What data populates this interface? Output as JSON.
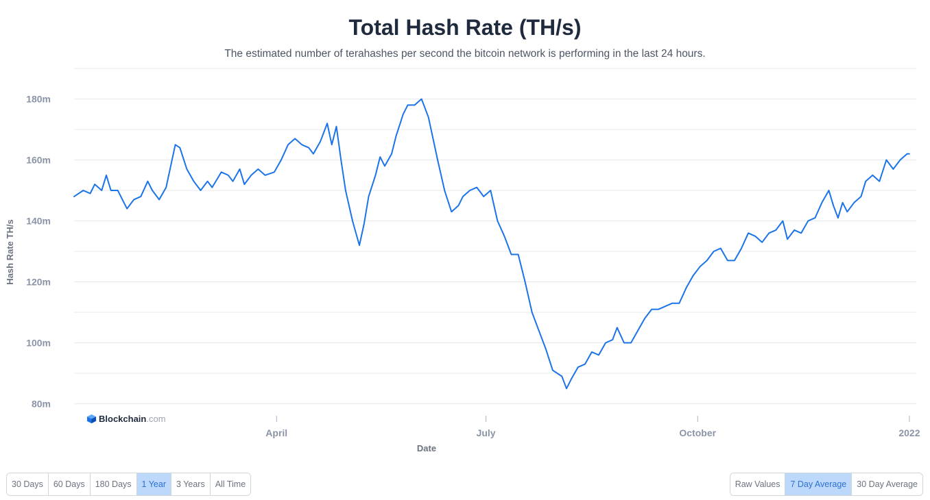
{
  "header": {
    "title": "Total Hash Rate (TH/s)",
    "subtitle": "The estimated number of terahashes per second the bitcoin network is performing in the last 24 hours."
  },
  "brand": {
    "name": "Blockchain",
    "domain": ".com",
    "icon": "blockchain-cube-icon"
  },
  "colors": {
    "line": "#1a73e8",
    "grid": "#e6e9ee",
    "axis_text": "#8a94a6",
    "active_button": "#bcd9fc"
  },
  "range_buttons": [
    {
      "label": "30 Days",
      "active": false
    },
    {
      "label": "60 Days",
      "active": false
    },
    {
      "label": "180 Days",
      "active": false
    },
    {
      "label": "1 Year",
      "active": true
    },
    {
      "label": "3 Years",
      "active": false
    },
    {
      "label": "All Time",
      "active": false
    }
  ],
  "average_buttons": [
    {
      "label": "Raw Values",
      "active": false
    },
    {
      "label": "7 Day Average",
      "active": true
    },
    {
      "label": "30 Day Average",
      "active": false
    }
  ],
  "chart_data": {
    "type": "line",
    "title": "Total Hash Rate (TH/s)",
    "xlabel": "Date",
    "ylabel": "Hash Rate TH/s",
    "y_ticks": [
      {
        "value": 80,
        "label": "80m"
      },
      {
        "value": 100,
        "label": "100m"
      },
      {
        "value": 120,
        "label": "120m"
      },
      {
        "value": 140,
        "label": "140m"
      },
      {
        "value": 160,
        "label": "160m"
      },
      {
        "value": 180,
        "label": "180m"
      }
    ],
    "ylim": [
      79,
      190
    ],
    "xlim": [
      "2021-01-03",
      "2022-01-04"
    ],
    "x_ticks": [
      {
        "date": "2021-04-01",
        "label": "April"
      },
      {
        "date": "2021-07-01",
        "label": "July"
      },
      {
        "date": "2021-10-01",
        "label": "October"
      },
      {
        "date": "2022-01-01",
        "label": "2022"
      }
    ],
    "grid": true,
    "series": [
      {
        "values": [
          [
            "2021-01-03",
            148
          ],
          [
            "2021-01-07",
            150
          ],
          [
            "2021-01-10",
            149
          ],
          [
            "2021-01-12",
            152
          ],
          [
            "2021-01-15",
            150
          ],
          [
            "2021-01-17",
            155
          ],
          [
            "2021-01-19",
            150
          ],
          [
            "2021-01-22",
            150
          ],
          [
            "2021-01-26",
            144
          ],
          [
            "2021-01-29",
            147
          ],
          [
            "2021-02-01",
            148
          ],
          [
            "2021-02-04",
            153
          ],
          [
            "2021-02-06",
            150
          ],
          [
            "2021-02-09",
            147
          ],
          [
            "2021-02-12",
            151
          ],
          [
            "2021-02-16",
            165
          ],
          [
            "2021-02-18",
            164
          ],
          [
            "2021-02-21",
            157
          ],
          [
            "2021-02-24",
            153
          ],
          [
            "2021-02-27",
            150
          ],
          [
            "2021-03-02",
            153
          ],
          [
            "2021-03-04",
            151
          ],
          [
            "2021-03-08",
            156
          ],
          [
            "2021-03-11",
            155
          ],
          [
            "2021-03-13",
            153
          ],
          [
            "2021-03-16",
            157
          ],
          [
            "2021-03-18",
            152
          ],
          [
            "2021-03-21",
            155
          ],
          [
            "2021-03-24",
            157
          ],
          [
            "2021-03-27",
            155
          ],
          [
            "2021-03-31",
            156
          ],
          [
            "2021-04-03",
            160
          ],
          [
            "2021-04-06",
            165
          ],
          [
            "2021-04-09",
            167
          ],
          [
            "2021-04-12",
            165
          ],
          [
            "2021-04-15",
            164
          ],
          [
            "2021-04-17",
            162
          ],
          [
            "2021-04-20",
            166
          ],
          [
            "2021-04-23",
            172
          ],
          [
            "2021-04-25",
            165
          ],
          [
            "2021-04-27",
            171
          ],
          [
            "2021-04-29",
            160
          ],
          [
            "2021-05-01",
            150
          ],
          [
            "2021-05-04",
            140
          ],
          [
            "2021-05-07",
            132
          ],
          [
            "2021-05-09",
            139
          ],
          [
            "2021-05-11",
            148
          ],
          [
            "2021-05-14",
            155
          ],
          [
            "2021-05-16",
            161
          ],
          [
            "2021-05-18",
            158
          ],
          [
            "2021-05-21",
            162
          ],
          [
            "2021-05-23",
            168
          ],
          [
            "2021-05-26",
            175
          ],
          [
            "2021-05-28",
            178
          ],
          [
            "2021-05-31",
            178
          ],
          [
            "2021-06-03",
            180
          ],
          [
            "2021-06-06",
            174
          ],
          [
            "2021-06-10",
            160
          ],
          [
            "2021-06-13",
            150
          ],
          [
            "2021-06-16",
            143
          ],
          [
            "2021-06-19",
            145
          ],
          [
            "2021-06-21",
            148
          ],
          [
            "2021-06-24",
            150
          ],
          [
            "2021-06-27",
            151
          ],
          [
            "2021-06-30",
            148
          ],
          [
            "2021-07-03",
            150
          ],
          [
            "2021-07-06",
            140
          ],
          [
            "2021-07-09",
            135
          ],
          [
            "2021-07-12",
            129
          ],
          [
            "2021-07-15",
            129
          ],
          [
            "2021-07-18",
            120
          ],
          [
            "2021-07-21",
            110
          ],
          [
            "2021-07-24",
            104
          ],
          [
            "2021-07-27",
            98
          ],
          [
            "2021-07-30",
            91
          ],
          [
            "2021-08-03",
            89
          ],
          [
            "2021-08-05",
            85
          ],
          [
            "2021-08-07",
            88
          ],
          [
            "2021-08-10",
            92
          ],
          [
            "2021-08-13",
            93
          ],
          [
            "2021-08-16",
            97
          ],
          [
            "2021-08-19",
            96
          ],
          [
            "2021-08-22",
            100
          ],
          [
            "2021-08-25",
            101
          ],
          [
            "2021-08-27",
            105
          ],
          [
            "2021-08-30",
            100
          ],
          [
            "2021-09-02",
            100
          ],
          [
            "2021-09-05",
            104
          ],
          [
            "2021-09-08",
            108
          ],
          [
            "2021-09-11",
            111
          ],
          [
            "2021-09-14",
            111
          ],
          [
            "2021-09-17",
            112
          ],
          [
            "2021-09-20",
            113
          ],
          [
            "2021-09-23",
            113
          ],
          [
            "2021-09-26",
            118
          ],
          [
            "2021-09-29",
            122
          ],
          [
            "2021-10-02",
            125
          ],
          [
            "2021-10-05",
            127
          ],
          [
            "2021-10-08",
            130
          ],
          [
            "2021-10-11",
            131
          ],
          [
            "2021-10-14",
            127
          ],
          [
            "2021-10-17",
            127
          ],
          [
            "2021-10-20",
            131
          ],
          [
            "2021-10-23",
            136
          ],
          [
            "2021-10-26",
            135
          ],
          [
            "2021-10-29",
            133
          ],
          [
            "2021-11-01",
            136
          ],
          [
            "2021-11-04",
            137
          ],
          [
            "2021-11-07",
            140
          ],
          [
            "2021-11-09",
            134
          ],
          [
            "2021-11-12",
            137
          ],
          [
            "2021-11-15",
            136
          ],
          [
            "2021-11-18",
            140
          ],
          [
            "2021-11-21",
            141
          ],
          [
            "2021-11-24",
            146
          ],
          [
            "2021-11-27",
            150
          ],
          [
            "2021-11-29",
            145
          ],
          [
            "2021-12-01",
            141
          ],
          [
            "2021-12-03",
            146
          ],
          [
            "2021-12-05",
            143
          ],
          [
            "2021-12-08",
            146
          ],
          [
            "2021-12-11",
            148
          ],
          [
            "2021-12-13",
            153
          ],
          [
            "2021-12-16",
            155
          ],
          [
            "2021-12-19",
            153
          ],
          [
            "2021-12-22",
            160
          ],
          [
            "2021-12-25",
            157
          ],
          [
            "2021-12-28",
            160
          ],
          [
            "2021-12-31",
            162
          ],
          [
            "2022-01-01",
            162
          ]
        ]
      }
    ]
  }
}
